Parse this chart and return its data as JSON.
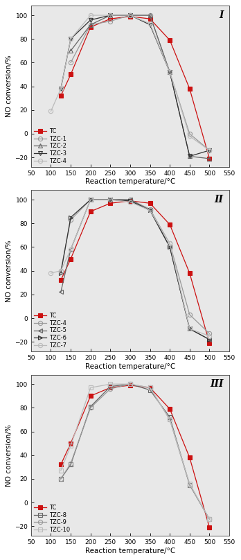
{
  "temperatures": [
    100,
    125,
    150,
    200,
    250,
    300,
    350,
    400,
    450,
    500
  ],
  "xlabel": "Reaction temperature/°C",
  "ylabel": "NO conversion/%",
  "xlim": [
    50,
    550
  ],
  "ylim": [
    -28,
    108
  ],
  "yticks": [
    -20,
    0,
    20,
    40,
    60,
    80,
    100
  ],
  "xticks": [
    50,
    100,
    150,
    200,
    250,
    300,
    350,
    400,
    450,
    500,
    550
  ],
  "bg_color": "#e8e8e8",
  "panels": [
    {
      "label": "I",
      "series": [
        {
          "name": "TC",
          "color": "#cc1111",
          "marker": "s",
          "linestyle": "-",
          "markersize": 4.5,
          "fillstyle": "full",
          "data": [
            null,
            32,
            50,
            90,
            97,
            99,
            97,
            79,
            38,
            -21
          ]
        },
        {
          "name": "TZC-1",
          "color": "#999999",
          "marker": "o",
          "linestyle": "-",
          "markersize": 4.5,
          "fillstyle": "none",
          "data": [
            null,
            null,
            60,
            92,
            95,
            100,
            100,
            52,
            0,
            -14
          ]
        },
        {
          "name": "TZC-2",
          "color": "#666666",
          "marker": "^",
          "linestyle": "-",
          "markersize": 4.5,
          "fillstyle": "none",
          "data": [
            null,
            null,
            70,
            92,
            100,
            100,
            100,
            52,
            -19,
            -21
          ]
        },
        {
          "name": "TZC-3",
          "color": "#333333",
          "marker": "v",
          "linestyle": "-",
          "markersize": 4.5,
          "fillstyle": "none",
          "data": [
            null,
            38,
            80,
            96,
            100,
            100,
            92,
            52,
            -19,
            -14
          ]
        },
        {
          "name": "TZC-4",
          "color": "#bbbbbb",
          "marker": "o",
          "linestyle": "-",
          "markersize": 4.5,
          "fillstyle": "none",
          "data": [
            19,
            38,
            80,
            100,
            100,
            100,
            93,
            52,
            -2,
            -14
          ]
        }
      ]
    },
    {
      "label": "II",
      "series": [
        {
          "name": "TC",
          "color": "#cc1111",
          "marker": "s",
          "linestyle": "-",
          "markersize": 4.5,
          "fillstyle": "full",
          "data": [
            null,
            32,
            50,
            90,
            97,
            99,
            97,
            79,
            38,
            -21
          ]
        },
        {
          "name": "TZC-4",
          "color": "#999999",
          "marker": "o",
          "linestyle": "-",
          "markersize": 4.5,
          "fillstyle": "none",
          "data": [
            null,
            40,
            83,
            100,
            100,
            100,
            92,
            63,
            3,
            -13
          ]
        },
        {
          "name": "TZC-5",
          "color": "#666666",
          "marker": "<",
          "linestyle": "-",
          "markersize": 4.5,
          "fillstyle": "none",
          "data": [
            null,
            22,
            58,
            100,
            100,
            100,
            91,
            60,
            -9,
            -18
          ]
        },
        {
          "name": "TZC-6",
          "color": "#333333",
          "marker": ">",
          "linestyle": "-",
          "markersize": 4.5,
          "fillstyle": "none",
          "data": [
            null,
            38,
            85,
            100,
            100,
            99,
            91,
            60,
            -9,
            -18
          ]
        },
        {
          "name": "TZC-7",
          "color": "#bbbbbb",
          "marker": "o",
          "linestyle": "-",
          "markersize": 4.5,
          "fillstyle": "none",
          "data": [
            38,
            40,
            58,
            100,
            100,
            98,
            91,
            63,
            -9,
            -15
          ]
        }
      ]
    },
    {
      "label": "III",
      "series": [
        {
          "name": "TC",
          "color": "#cc1111",
          "marker": "s",
          "linestyle": "-",
          "markersize": 4.5,
          "fillstyle": "full",
          "data": [
            null,
            32,
            50,
            90,
            97,
            99,
            97,
            79,
            38,
            -21
          ]
        },
        {
          "name": "TZC-8",
          "color": "#666666",
          "marker": "s",
          "linestyle": "-",
          "markersize": 4.5,
          "fillstyle": "none",
          "data": [
            null,
            20,
            32,
            81,
            98,
            100,
            95,
            72,
            15,
            -14
          ]
        },
        {
          "name": "TZC-9",
          "color": "#999999",
          "marker": "o",
          "linestyle": "-",
          "markersize": 4.5,
          "fillstyle": "none",
          "data": [
            null,
            20,
            33,
            80,
            96,
            100,
            97,
            70,
            15,
            -14
          ]
        },
        {
          "name": "TZC-10",
          "color": "#bbbbbb",
          "marker": "s",
          "linestyle": "-",
          "markersize": 4.5,
          "fillstyle": "none",
          "data": [
            null,
            27,
            48,
            97,
            100,
            100,
            97,
            70,
            16,
            -14
          ]
        }
      ]
    }
  ]
}
